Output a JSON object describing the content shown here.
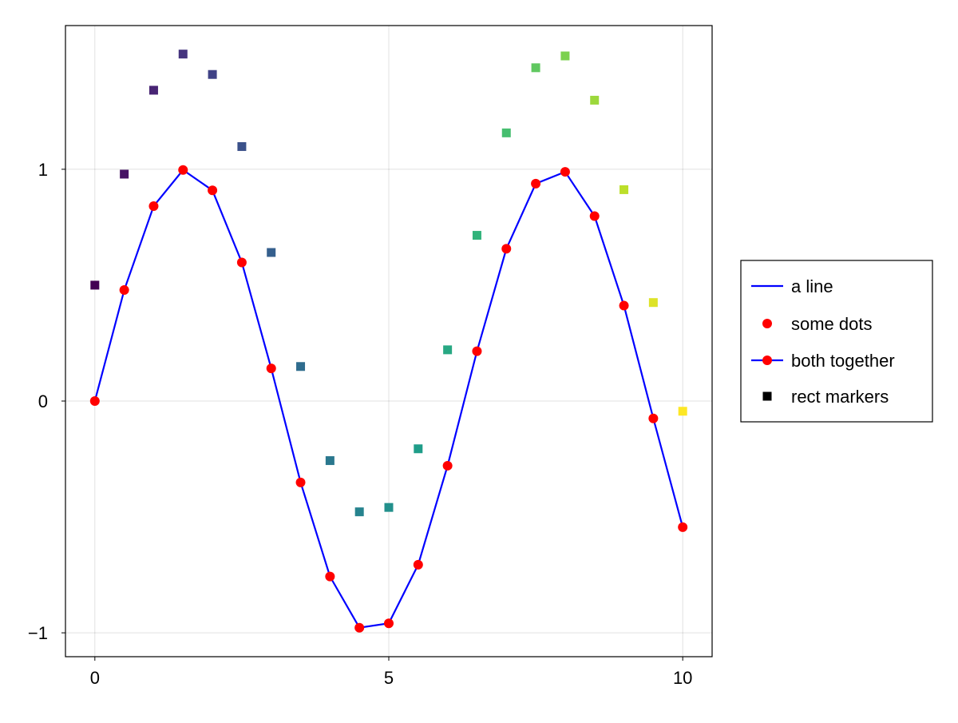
{
  "chart_data": {
    "type": "line",
    "title": "",
    "xlabel": "",
    "ylabel": "",
    "xlim": [
      -0.5,
      10.5
    ],
    "ylim": [
      -1.103,
      1.62
    ],
    "grid": true,
    "xticks": [
      0,
      5,
      10
    ],
    "xtick_labels": [
      "0",
      "5",
      "10"
    ],
    "yticks": [
      -1,
      0,
      1
    ],
    "ytick_labels": [
      "−1",
      "0",
      "1"
    ],
    "x": [
      0,
      0.5,
      1,
      1.5,
      2,
      2.5,
      3,
      3.5,
      4,
      4.5,
      5,
      5.5,
      6,
      6.5,
      7,
      7.5,
      8,
      8.5,
      9,
      9.5,
      10
    ],
    "series": [
      {
        "name": "a line",
        "kind": "line",
        "color": "#0000ff",
        "values": [
          0,
          0.479,
          0.841,
          0.997,
          0.909,
          0.598,
          0.141,
          -0.351,
          -0.757,
          -0.978,
          -0.959,
          -0.706,
          -0.279,
          0.215,
          0.657,
          0.938,
          0.989,
          0.798,
          0.412,
          -0.075,
          -0.544
        ]
      },
      {
        "name": "some dots",
        "kind": "scatter",
        "color": "#ff0000",
        "values": [
          0,
          0.479,
          0.841,
          0.997,
          0.909,
          0.598,
          0.141,
          -0.351,
          -0.757,
          -0.978,
          -0.959,
          -0.706,
          -0.279,
          0.215,
          0.657,
          0.938,
          0.989,
          0.798,
          0.412,
          -0.075,
          -0.544
        ]
      },
      {
        "name": "both together",
        "kind": "scatterline",
        "color": "#0000ff",
        "marker_color": "#ff0000",
        "values": [
          0,
          0.479,
          0.841,
          0.997,
          0.909,
          0.598,
          0.141,
          -0.351,
          -0.757,
          -0.978,
          -0.959,
          -0.706,
          -0.279,
          0.215,
          0.657,
          0.938,
          0.989,
          0.798,
          0.412,
          -0.075,
          -0.544
        ]
      },
      {
        "name": "rect markers",
        "kind": "rect",
        "color": "#000000",
        "colormap": "viridis",
        "values": [
          0.5,
          0.979,
          1.341,
          1.497,
          1.409,
          1.098,
          0.641,
          0.149,
          -0.257,
          -0.478,
          -0.459,
          -0.206,
          0.221,
          0.715,
          1.157,
          1.438,
          1.489,
          1.298,
          0.912,
          0.425,
          -0.044
        ]
      }
    ],
    "legend": {
      "position": "right",
      "entries": [
        "a line",
        "some dots",
        "both together",
        "rect markers"
      ]
    },
    "viridis": [
      "#440154",
      "#482878",
      "#3e4989",
      "#31688e",
      "#26828e",
      "#1f9e89",
      "#35b779",
      "#6ece58",
      "#b5de2b",
      "#fde725"
    ]
  }
}
